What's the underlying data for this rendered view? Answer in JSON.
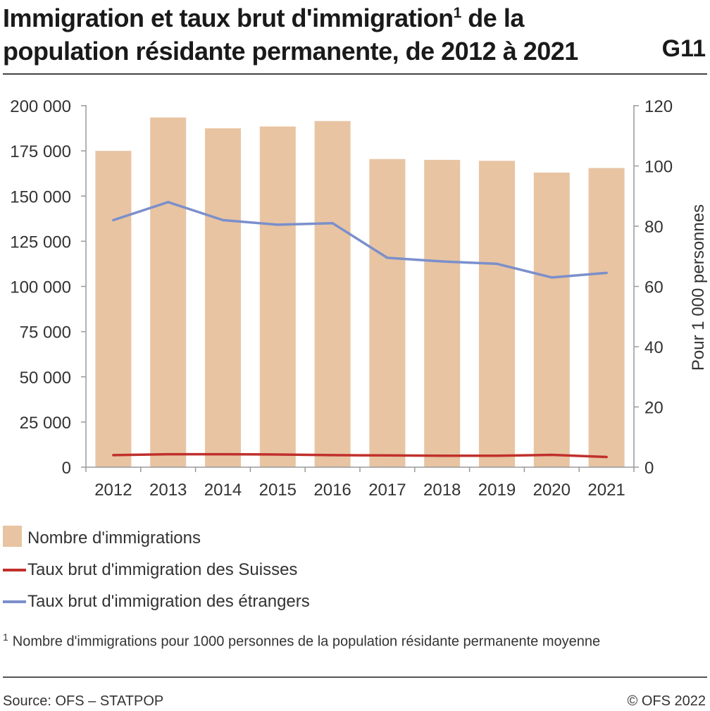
{
  "header": {
    "title": "Immigration et taux brut d'immigration",
    "title_sup": "1",
    "title_rest": " de la population résidante permanente, de 2012 à 2021",
    "badge": "G11"
  },
  "chart_data": {
    "type": "bar",
    "categories": [
      "2012",
      "2013",
      "2014",
      "2015",
      "2016",
      "2017",
      "2018",
      "2019",
      "2020",
      "2021"
    ],
    "series": [
      {
        "name": "Nombre d'immigrations",
        "kind": "bar",
        "axis": "left",
        "color": "#e8c4a2",
        "values": [
          175000,
          193500,
          187500,
          188500,
          191500,
          170500,
          170000,
          169500,
          163000,
          165500
        ]
      },
      {
        "name": "Taux brut d'immigration des Suisses",
        "kind": "line",
        "axis": "right",
        "color": "#c0302c",
        "values": [
          4.0,
          4.3,
          4.3,
          4.2,
          4.0,
          3.9,
          3.8,
          3.8,
          4.1,
          3.4
        ]
      },
      {
        "name": "Taux brut d'immigration des étrangers",
        "kind": "line",
        "axis": "right",
        "color": "#7b8fcb",
        "values": [
          82,
          88,
          82,
          80.5,
          81,
          69.5,
          68.3,
          67.5,
          63,
          64.5
        ]
      }
    ],
    "y_left": {
      "min": 0,
      "max": 200000,
      "ticks": [
        0,
        25000,
        50000,
        75000,
        100000,
        125000,
        150000,
        175000,
        200000
      ],
      "tick_labels": [
        "0",
        "25 000",
        "50 000",
        "75 000",
        "100 000",
        "125 000",
        "150 000",
        "175 000",
        "200 000"
      ]
    },
    "y_right": {
      "min": 0,
      "max": 120,
      "ticks": [
        0,
        20,
        40,
        60,
        80,
        100,
        120
      ],
      "tick_labels": [
        "0",
        "20",
        "40",
        "60",
        "80",
        "100",
        "120"
      ],
      "label": "Pour 1 000 personnes"
    },
    "grid": false,
    "legend_position": "bottom-left"
  },
  "legend": {
    "items": [
      {
        "label": "Nombre d'immigrations",
        "type": "box",
        "color": "#e8c4a2"
      },
      {
        "label": "Taux brut d'immigration des Suisses",
        "type": "line",
        "color": "#c0302c"
      },
      {
        "label": "Taux brut d'immigration des étrangers",
        "type": "line",
        "color": "#7b8fcb"
      }
    ]
  },
  "footnote": {
    "marker": "1",
    "text": "Nombre d'immigrations pour 1000 personnes de la population résidante permanente moyenne"
  },
  "footer": {
    "source": "Source: OFS – STATPOP",
    "copyright": "© OFS 2022"
  }
}
